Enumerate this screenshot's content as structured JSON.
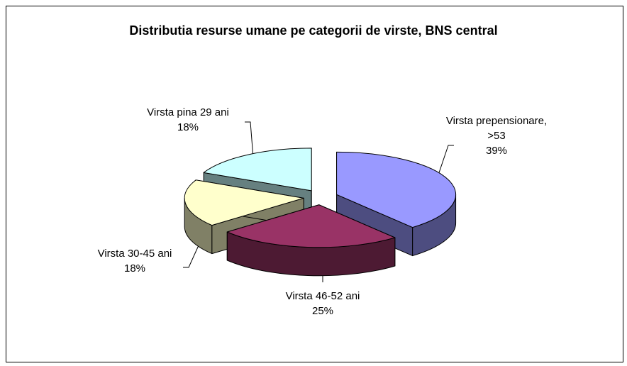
{
  "chart_data": {
    "type": "pie3d",
    "title": "Distributia resurse umane pe categorii de virste, BNS central",
    "categories": [
      "Virsta prepensionare, >53",
      "Virsta 46-52 ani",
      "Virsta 30-45 ani",
      "Virsta pina 29 ani"
    ],
    "values": [
      39,
      25,
      18,
      18
    ],
    "value_labels": [
      "39%",
      "25%",
      "18%",
      "18%"
    ],
    "colors": [
      "#9999ff",
      "#993366",
      "#ffffcc",
      "#ccffff"
    ],
    "side_colors": [
      "#4d4d80",
      "#4d1a33",
      "#808066",
      "#668080"
    ]
  }
}
